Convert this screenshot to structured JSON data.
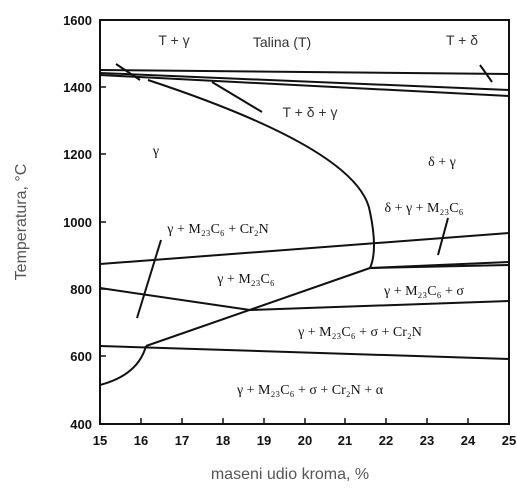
{
  "diagram": {
    "y_axis_title": "Temperatura, °C",
    "x_axis_title": "maseni udio kroma, %",
    "y_ticks": [
      "1600",
      "1400",
      "1200",
      "1000",
      "800",
      "600",
      "400"
    ],
    "x_ticks": [
      "15",
      "16",
      "17",
      "18",
      "19",
      "20",
      "21",
      "22",
      "23",
      "24",
      "25"
    ],
    "regions": {
      "t_gamma": "T + γ",
      "talina": "Talina (T)",
      "t_delta": "T + δ",
      "t_delta_gamma": "T + δ + γ",
      "gamma": "γ",
      "delta_gamma": "δ + γ",
      "delta_gamma_m23c6": "δ + γ + M₂₃C₆",
      "gamma_m23c6_cr2n": "γ + M₂₃C₆ + Cr₂N",
      "gamma_m23c6": "γ + M₂₃C₆",
      "gamma_m23c6_sigma": "γ + M₂₃C₆ + σ",
      "gamma_m23c6_sigma_cr2n": "γ + M₂₃C₆ + σ + Cr₂N",
      "gamma_m23c6_sigma_cr2n_alpha": "γ + M₂₃C₆ + σ + Cr₂N + α"
    }
  }
}
